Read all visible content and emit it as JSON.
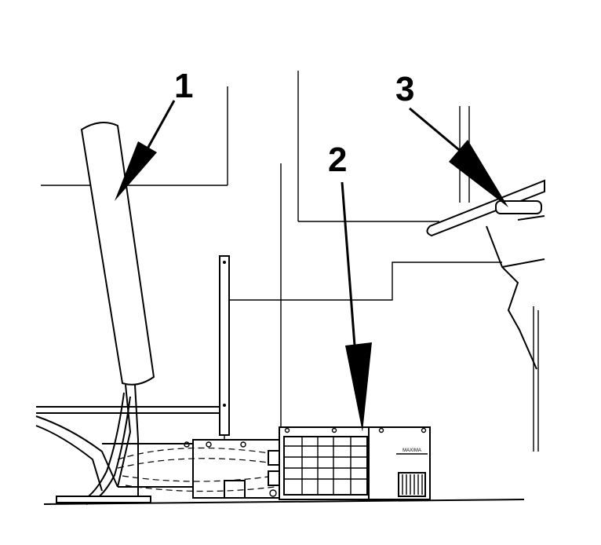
{
  "callouts": [
    {
      "id": "1",
      "label": "1"
    },
    {
      "id": "2",
      "label": "2"
    },
    {
      "id": "3",
      "label": "3"
    }
  ],
  "unit_badge": "MAXIMA",
  "colors": {
    "line": "#000000",
    "background": "#ffffff"
  }
}
